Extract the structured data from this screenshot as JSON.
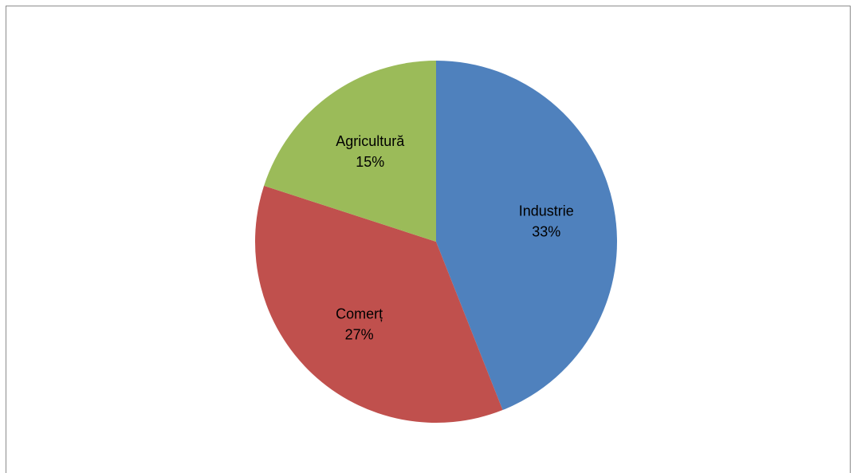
{
  "chart_data": {
    "type": "pie",
    "slices": [
      {
        "label": "Industrie",
        "percent_label": "33%",
        "value": 33,
        "color": "#4F81BD"
      },
      {
        "label": "Comerț",
        "percent_label": "27%",
        "value": 27,
        "color": "#C0504D"
      },
      {
        "label": "Agricultură",
        "percent_label": "15%",
        "value": 15,
        "color": "#9BBB59"
      }
    ]
  }
}
